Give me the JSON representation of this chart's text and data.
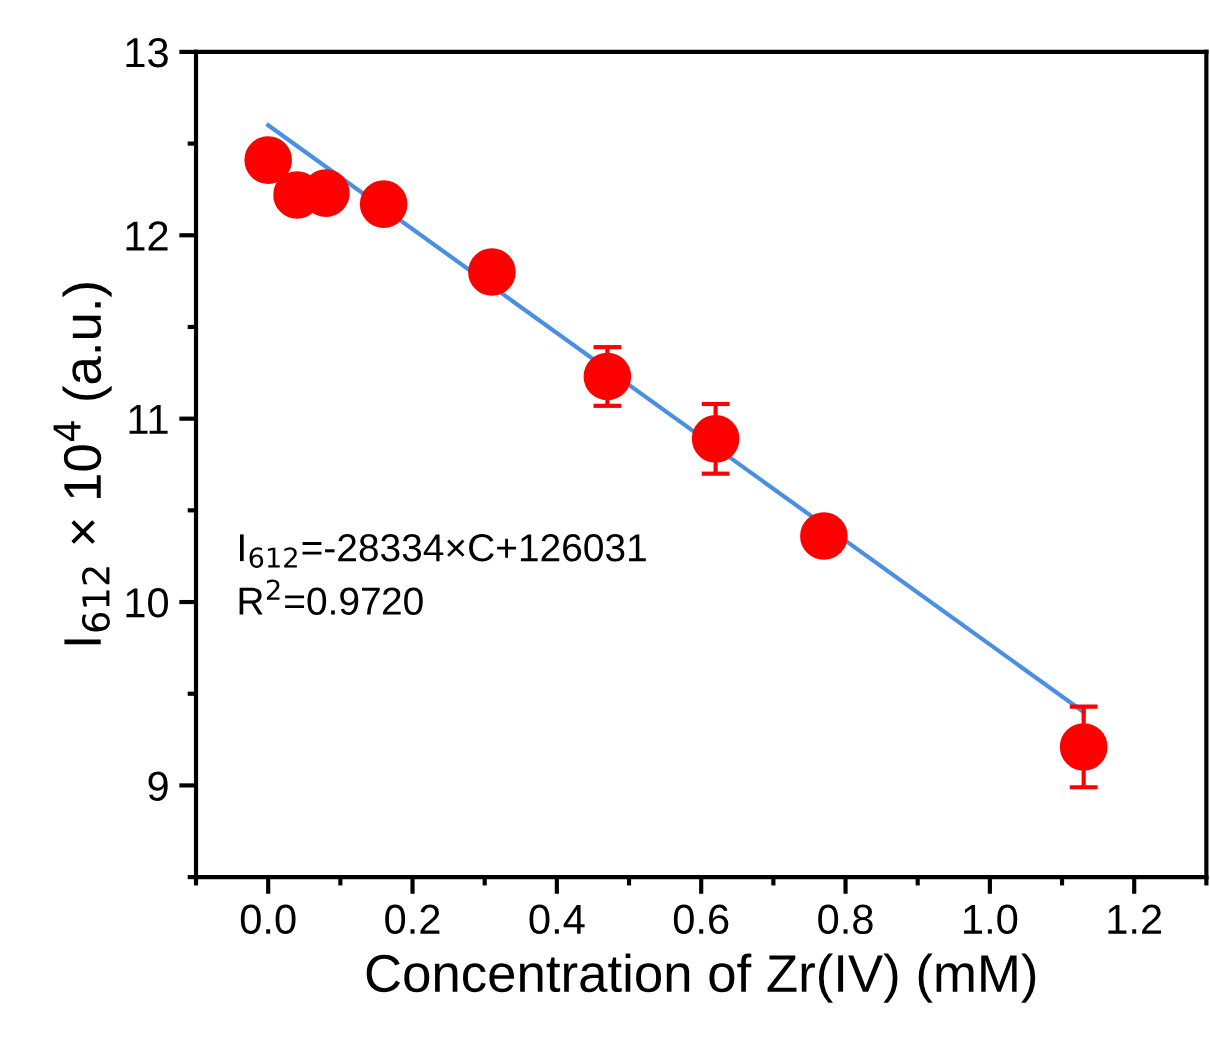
{
  "chart_data": {
    "type": "scatter",
    "xlabel": "Concentration of Zr(IV) (mM)",
    "ylabel": "I$_{612}$ × 10$^{4}$ (a.u.)",
    "xlim": [
      -0.1,
      1.3
    ],
    "xticks": [
      {
        "value": 0,
        "label": "0.0"
      },
      0.2,
      0.4,
      0.6,
      0.8,
      {
        "value": 1,
        "label": "1.0"
      },
      1.2
    ],
    "ylim": [
      8.5,
      13
    ],
    "yticks": [
      9,
      10,
      11,
      12,
      13
    ],
    "grid": false,
    "legend": false,
    "series": [
      {
        "color": "#ff0000",
        "marker": "circle",
        "x": [
          0,
          0.04,
          0.08,
          0.16,
          0.31,
          0.47,
          0.62,
          0.77,
          1.13
        ],
        "values": [
          12.41,
          12.22,
          12.23,
          12.17,
          11.8,
          11.23,
          10.89,
          10.36,
          9.21
        ],
        "errors": [
          0.05,
          0.05,
          0.05,
          0.05,
          0.08,
          0.16,
          0.19,
          0.05,
          0.22
        ]
      },
      {
        "type": "line",
        "color": "#4a90e2",
        "marker": "none",
        "line_style": "solid",
        "x": [
          0,
          1.13
        ],
        "values": [
          12.6,
          9.4
        ]
      }
    ],
    "annotations": [
      "I$_{612}$=-28334×C+126031",
      "R$^{2}$=0.9720"
    ]
  }
}
